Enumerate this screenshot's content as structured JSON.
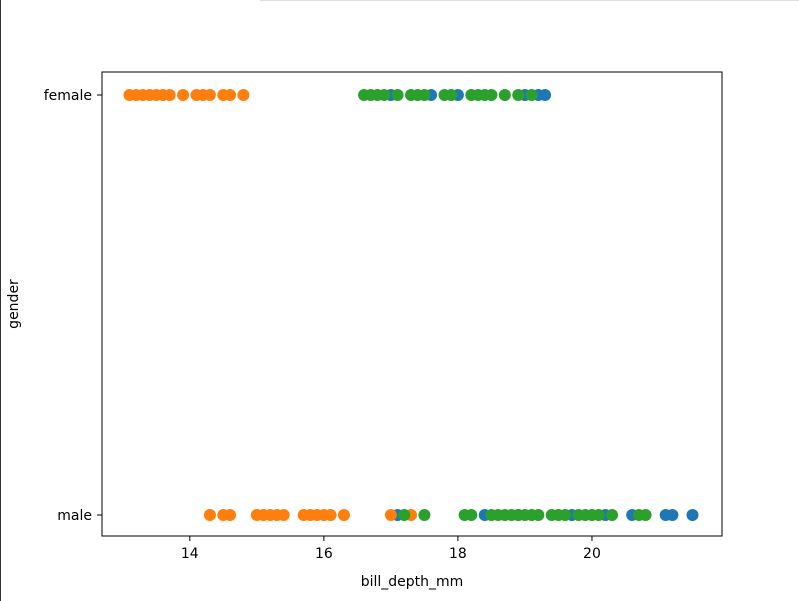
{
  "chart_data": {
    "type": "scatter",
    "x_label": "bill_depth_mm",
    "y_label": "gender",
    "xlim": [
      12.69,
      21.94
    ],
    "xticks": [
      14,
      16,
      18,
      20
    ],
    "y_categories": [
      "male",
      "female"
    ],
    "grid": false,
    "series": [
      {
        "color": "#1f77b4",
        "x": [
          17.0,
          17.6,
          18.0,
          19.0,
          19.2,
          19.3,
          17.1,
          18.4,
          18.9,
          19.7,
          20.2,
          20.6,
          21.1,
          21.2,
          21.5
        ],
        "values": [
          "female",
          "female",
          "female",
          "female",
          "female",
          "female",
          "male",
          "male",
          "male",
          "male",
          "male",
          "male",
          "male",
          "male",
          "male"
        ]
      },
      {
        "color": "#ff7f0e",
        "x": [
          13.1,
          13.2,
          13.3,
          13.4,
          13.5,
          13.6,
          13.7,
          13.9,
          14.1,
          14.2,
          14.3,
          14.5,
          14.6,
          14.8,
          14.3,
          14.5,
          14.6,
          15.0,
          15.1,
          15.2,
          15.3,
          15.4,
          15.7,
          15.8,
          15.9,
          16.0,
          16.1,
          16.3,
          17.0,
          17.3
        ],
        "values": [
          "female",
          "female",
          "female",
          "female",
          "female",
          "female",
          "female",
          "female",
          "female",
          "female",
          "female",
          "female",
          "female",
          "female",
          "male",
          "male",
          "male",
          "male",
          "male",
          "male",
          "male",
          "male",
          "male",
          "male",
          "male",
          "male",
          "male",
          "male",
          "male",
          "male"
        ]
      },
      {
        "color": "#2ca02c",
        "x": [
          16.6,
          16.7,
          16.8,
          16.9,
          17.1,
          17.3,
          17.4,
          17.5,
          17.8,
          17.9,
          18.2,
          18.3,
          18.4,
          18.5,
          18.7,
          18.9,
          19.1,
          17.2,
          17.5,
          18.1,
          18.2,
          18.5,
          18.6,
          18.7,
          18.8,
          18.9,
          19.0,
          19.1,
          19.2,
          19.4,
          19.5,
          19.6,
          19.8,
          19.9,
          20.0,
          20.1,
          20.3,
          20.7,
          20.8
        ],
        "values": [
          "female",
          "female",
          "female",
          "female",
          "female",
          "female",
          "female",
          "female",
          "female",
          "female",
          "female",
          "female",
          "female",
          "female",
          "female",
          "female",
          "female",
          "male",
          "male",
          "male",
          "male",
          "male",
          "male",
          "male",
          "male",
          "male",
          "male",
          "male",
          "male",
          "male",
          "male",
          "male",
          "male",
          "male",
          "male",
          "male",
          "male",
          "male",
          "male"
        ]
      }
    ]
  }
}
